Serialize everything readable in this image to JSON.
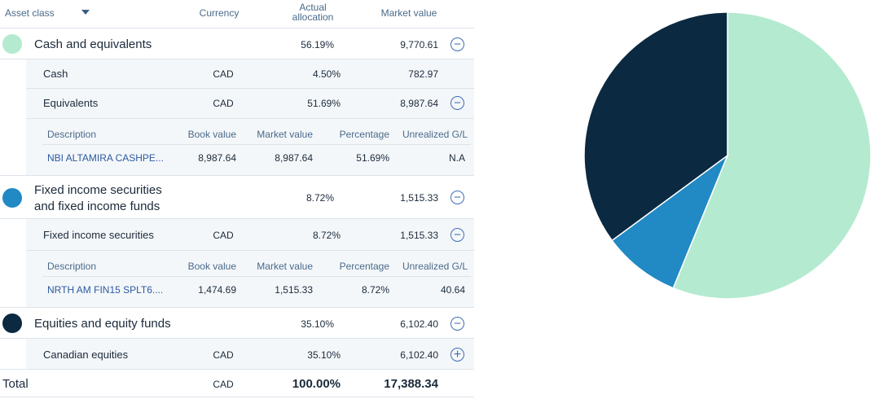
{
  "header": {
    "asset_class": "Asset class",
    "currency": "Currency",
    "allocation_line1": "Actual",
    "allocation_line2": "allocation",
    "market_value": "Market value"
  },
  "colors": {
    "cash": "#b4ead0",
    "fixed_income": "#2189c4",
    "equities": "#0b2940",
    "accent": "#3f6db5"
  },
  "groups": [
    {
      "title": "Cash and equivalents",
      "allocation": "56.19%",
      "market_value": "9,770.61",
      "subrows": [
        {
          "name": "Cash",
          "currency": "CAD",
          "allocation": "4.50%",
          "market_value": "782.97"
        },
        {
          "name": "Equivalents",
          "currency": "CAD",
          "allocation": "51.69%",
          "market_value": "8,987.64"
        }
      ],
      "detail": {
        "headers": [
          "Description",
          "Book value",
          "Market value",
          "Percentage",
          "Unrealized G/L"
        ],
        "row": [
          "NBI ALTAMIRA CASHPE...",
          "8,987.64",
          "8,987.64",
          "51.69%",
          "N.A"
        ]
      }
    },
    {
      "title_line1": "Fixed income securities",
      "title_line2": "and fixed income funds",
      "allocation": "8.72%",
      "market_value": "1,515.33",
      "subrows": [
        {
          "name": "Fixed income securities",
          "currency": "CAD",
          "allocation": "8.72%",
          "market_value": "1,515.33"
        }
      ],
      "detail": {
        "headers": [
          "Description",
          "Book value",
          "Market value",
          "Percentage",
          "Unrealized G/L"
        ],
        "row": [
          "NRTH AM FIN15 SPLT6....",
          "1,474.69",
          "1,515.33",
          "8.72%",
          "40.64"
        ]
      }
    },
    {
      "title": "Equities and equity funds",
      "allocation": "35.10%",
      "market_value": "6,102.40",
      "subrows": [
        {
          "name": "Canadian equities",
          "currency": "CAD",
          "allocation": "35.10%",
          "market_value": "6,102.40"
        }
      ]
    }
  ],
  "total": {
    "label": "Total",
    "currency": "CAD",
    "allocation": "100.00%",
    "market_value": "17,388.34"
  },
  "chart_data": {
    "type": "pie",
    "slices": [
      {
        "label": "Cash and equivalents",
        "value": 56.19,
        "color": "#b4ead0"
      },
      {
        "label": "Fixed income securities and fixed income funds",
        "value": 8.72,
        "color": "#2189c4"
      },
      {
        "label": "Equities and equity funds",
        "value": 35.1,
        "color": "#0b2940"
      }
    ]
  }
}
